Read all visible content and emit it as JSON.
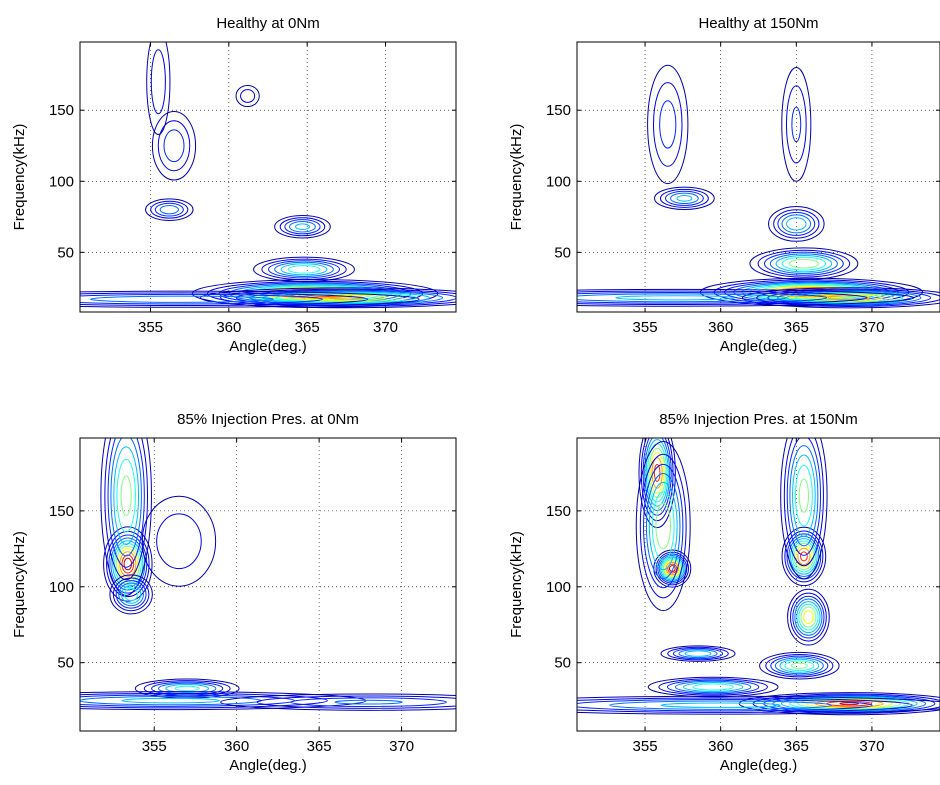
{
  "chart_data": [
    {
      "type": "contour",
      "title": "Healthy at 0Nm",
      "xlabel": "Angle(deg.)",
      "ylabel": "Frequency(kHz)",
      "xlim": [
        350.5,
        374.5
      ],
      "ylim": [
        8,
        198
      ],
      "xticks": [
        355,
        360,
        365,
        370
      ],
      "yticks": [
        50,
        100,
        150
      ],
      "grid": true,
      "blobs": [
        {
          "x": 365.5,
          "y": 21,
          "sx": 3.2,
          "sy": 4,
          "a": 1.0
        },
        {
          "x": 367.5,
          "y": 18,
          "sx": 4,
          "sy": 3,
          "a": 0.75
        },
        {
          "x": 364.8,
          "y": 38,
          "sx": 1.5,
          "sy": 4,
          "a": 0.5
        },
        {
          "x": 357,
          "y": 17,
          "sx": 8,
          "sy": 3,
          "a": 0.3
        },
        {
          "x": 364.7,
          "y": 68,
          "sx": 0.9,
          "sy": 4,
          "a": 0.35
        },
        {
          "x": 356.2,
          "y": 80,
          "sx": 0.8,
          "sy": 4,
          "a": 0.3
        },
        {
          "x": 356.5,
          "y": 125,
          "sx": 0.8,
          "sy": 14,
          "a": 0.22
        },
        {
          "x": 355.5,
          "y": 170,
          "sx": 0.5,
          "sy": 25,
          "a": 0.15
        },
        {
          "x": 361.2,
          "y": 160,
          "sx": 0.5,
          "sy": 5,
          "a": 0.15
        }
      ]
    },
    {
      "type": "contour",
      "title": "Healthy at 150Nm",
      "xlabel": "Angle(deg.)",
      "ylabel": "Frequency(kHz)",
      "xlim": [
        350.5,
        374.5
      ],
      "ylim": [
        8,
        198
      ],
      "xticks": [
        355,
        360,
        365,
        370
      ],
      "yticks": [
        50,
        100,
        150
      ],
      "grid": true,
      "blobs": [
        {
          "x": 366,
          "y": 22,
          "sx": 3,
          "sy": 4,
          "a": 1.0
        },
        {
          "x": 368.5,
          "y": 18,
          "sx": 3,
          "sy": 3,
          "a": 0.8
        },
        {
          "x": 365.5,
          "y": 42,
          "sx": 1.6,
          "sy": 5,
          "a": 0.6
        },
        {
          "x": 357,
          "y": 18,
          "sx": 8,
          "sy": 3,
          "a": 0.35
        },
        {
          "x": 365,
          "y": 70,
          "sx": 0.9,
          "sy": 6,
          "a": 0.4
        },
        {
          "x": 357.6,
          "y": 88,
          "sx": 1.0,
          "sy": 4,
          "a": 0.35
        },
        {
          "x": 356.5,
          "y": 140,
          "sx": 0.8,
          "sy": 25,
          "a": 0.2
        },
        {
          "x": 365,
          "y": 140,
          "sx": 0.6,
          "sy": 25,
          "a": 0.18
        }
      ]
    },
    {
      "type": "contour",
      "title": "85% Injection Pres. at 0Nm",
      "xlabel": "Angle(deg.)",
      "ylabel": "Frequency(kHz)",
      "xlim": [
        350.5,
        373.3
      ],
      "ylim": [
        5,
        198
      ],
      "xticks": [
        355,
        360,
        365,
        370
      ],
      "yticks": [
        50,
        100,
        150
      ],
      "grid": true,
      "blobs": [
        {
          "x": 353.4,
          "y": 115,
          "sx": 0.6,
          "sy": 10,
          "a": 1.0
        },
        {
          "x": 353.3,
          "y": 160,
          "sx": 0.7,
          "sy": 30,
          "a": 0.55
        },
        {
          "x": 353.6,
          "y": 95,
          "sx": 0.6,
          "sy": 6,
          "a": 0.5
        },
        {
          "x": 357,
          "y": 33,
          "sx": 1.5,
          "sy": 3,
          "a": 0.45
        },
        {
          "x": 356,
          "y": 25,
          "sx": 6,
          "sy": 3,
          "a": 0.35
        },
        {
          "x": 368,
          "y": 24,
          "sx": 5,
          "sy": 3,
          "a": 0.25
        },
        {
          "x": 356.5,
          "y": 130,
          "sx": 1.5,
          "sy": 20,
          "a": 0.15
        }
      ]
    },
    {
      "type": "contour",
      "title": "85% Injection Pres. at 150Nm",
      "xlabel": "Angle(deg.)",
      "ylabel": "Frequency(kHz)",
      "xlim": [
        350.5,
        374.5
      ],
      "ylim": [
        5,
        198
      ],
      "xticks": [
        355,
        360,
        365,
        370
      ],
      "yticks": [
        50,
        100,
        150
      ],
      "grid": true,
      "blobs": [
        {
          "x": 356.8,
          "y": 112,
          "sx": 0.5,
          "sy": 5,
          "a": 1.0
        },
        {
          "x": 355.8,
          "y": 175,
          "sx": 0.5,
          "sy": 15,
          "a": 0.9
        },
        {
          "x": 356.2,
          "y": 140,
          "sx": 0.8,
          "sy": 25,
          "a": 0.6
        },
        {
          "x": 365.5,
          "y": 120,
          "sx": 0.6,
          "sy": 8,
          "a": 0.9
        },
        {
          "x": 365.8,
          "y": 80,
          "sx": 0.6,
          "sy": 8,
          "a": 0.7
        },
        {
          "x": 365.5,
          "y": 160,
          "sx": 0.7,
          "sy": 25,
          "a": 0.55
        },
        {
          "x": 365.2,
          "y": 48,
          "sx": 1.2,
          "sy": 4,
          "a": 0.55
        },
        {
          "x": 368.5,
          "y": 23,
          "sx": 3,
          "sy": 3,
          "a": 0.95
        },
        {
          "x": 359.5,
          "y": 34,
          "sx": 2,
          "sy": 3,
          "a": 0.5
        },
        {
          "x": 358.5,
          "y": 56,
          "sx": 1.2,
          "sy": 2.5,
          "a": 0.4
        },
        {
          "x": 360,
          "y": 22,
          "sx": 8,
          "sy": 3,
          "a": 0.35
        }
      ]
    }
  ]
}
